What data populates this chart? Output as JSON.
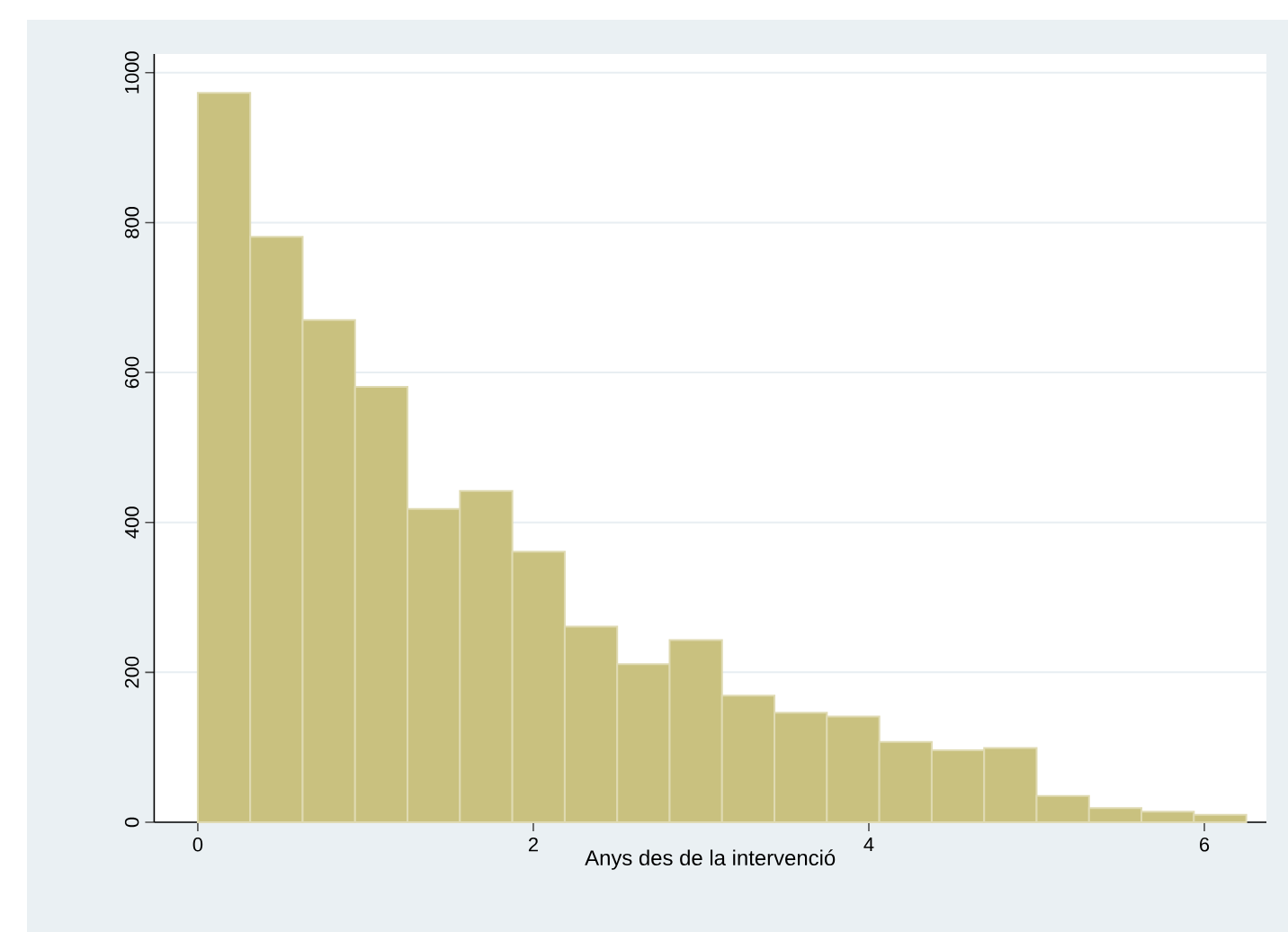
{
  "chart_data": {
    "type": "histogram",
    "xlabel": "Anys des de la intervenció",
    "bins": [
      0,
      0.3125,
      0.625,
      0.9375,
      1.25,
      1.5625,
      1.875,
      2.1875,
      2.5,
      2.8125,
      3.125,
      3.4375,
      3.75,
      4.0625,
      4.375,
      4.6875,
      5,
      5.3125,
      5.625,
      5.9375,
      6.25
    ],
    "values": [
      973,
      781,
      670,
      581,
      418,
      442,
      361,
      261,
      211,
      243,
      169,
      146,
      141,
      107,
      96,
      99,
      35,
      19,
      14,
      10
    ],
    "color": "#c9c17f",
    "xlim": [
      -0.26,
      6.37
    ],
    "ylim": [
      0,
      1025
    ],
    "xticks": [
      0,
      2,
      4,
      6
    ],
    "yticks": [
      0,
      200,
      400,
      600,
      800,
      1000
    ],
    "grid": "y"
  }
}
